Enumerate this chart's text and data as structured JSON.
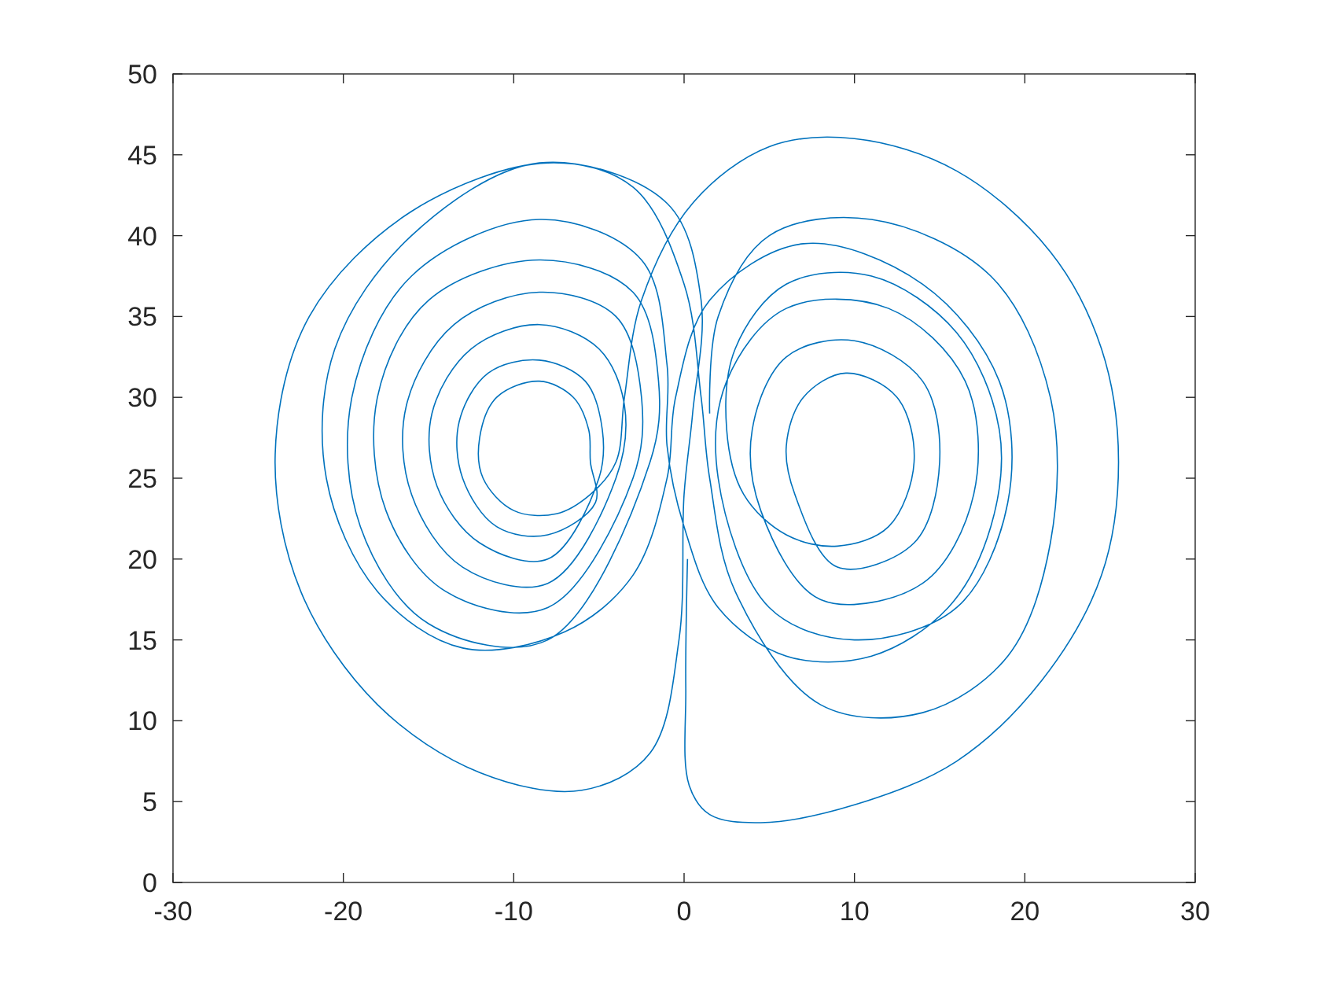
{
  "chart_data": {
    "type": "line",
    "xlim": [
      -30,
      30
    ],
    "xticks": [
      -30,
      -20,
      -10,
      0,
      10,
      20,
      30
    ],
    "ylim": [
      0,
      50
    ],
    "yticks": [
      0,
      5,
      10,
      15,
      20,
      25,
      30,
      35,
      40,
      45,
      50
    ],
    "grid": false,
    "series": [
      {
        "color": "#0072bd",
        "x": [
          0.2,
          0.1,
          0.3,
          1.5,
          4.5,
          10,
          16,
          21,
          24.5,
          25.5,
          24.5,
          21.5,
          16,
          10,
          5,
          0.5,
          -2.5,
          -3.5,
          -4,
          -5.5,
          -7.5,
          -10,
          -11.8,
          -12,
          -11,
          -8.5,
          -6.5,
          -5.6,
          -5.5,
          -5.2,
          -8,
          -11,
          -13,
          -13.2,
          -11.5,
          -8.5,
          -5.8,
          -4.8,
          -5,
          -8,
          -12,
          -14.5,
          -14.8,
          -12.5,
          -8.5,
          -5,
          -3.5,
          -4,
          -8,
          -13,
          -16,
          -16.3,
          -13.5,
          -8.5,
          -4,
          -2.5,
          -3,
          -8,
          -14,
          -17.5,
          -18,
          -15,
          -8.5,
          -3,
          -1.5,
          -2,
          -8,
          -15,
          -19,
          -19.5,
          -16,
          -8.5,
          -2.5,
          -1,
          -1,
          0,
          2,
          6,
          11,
          15.5,
          18,
          18.5,
          16,
          11,
          6,
          3,
          2.5,
          3.5,
          6,
          9,
          12,
          13.5,
          12.5,
          9.5,
          7,
          6,
          6.5,
          9,
          13.5,
          15,
          14,
          10,
          6,
          4,
          4.5,
          8,
          14,
          17,
          16.5,
          12,
          6,
          2.5,
          2,
          5,
          10,
          16,
          19,
          18.5,
          14,
          7,
          1.5,
          -0.5,
          -1,
          -3,
          -7,
          -13,
          -18,
          -21,
          -20.5,
          -16,
          -8.5,
          -1,
          1,
          0.5,
          0,
          -0.3,
          -2,
          -6,
          -12,
          -18,
          -22.5,
          -24,
          -22,
          -16,
          -8,
          -3,
          0,
          1,
          1.5,
          3,
          8,
          14,
          19,
          21.5,
          21.5,
          18,
          11,
          5,
          2,
          1.5
        ],
        "values": [
          20,
          12,
          6,
          4.2,
          3.7,
          4.8,
          7.5,
          12.5,
          19,
          26,
          33,
          39,
          44,
          46,
          45.5,
          42,
          36,
          30,
          26,
          24,
          22.8,
          23,
          25,
          27.5,
          30,
          31,
          30,
          28,
          26,
          23.5,
          21.5,
          22,
          25,
          28.5,
          31.5,
          32.3,
          31,
          28,
          25,
          20,
          21,
          24.5,
          29,
          33,
          34.5,
          33,
          29.5,
          25,
          18.5,
          19.5,
          24,
          29.5,
          34.5,
          36.5,
          35,
          30,
          25,
          17,
          18,
          23,
          30,
          36,
          38.5,
          36.5,
          31,
          26,
          15,
          16,
          22,
          30,
          37.5,
          41,
          38.5,
          32,
          27,
          22,
          17,
          14,
          14,
          17,
          22,
          28,
          34,
          37.5,
          37,
          33,
          28,
          24,
          21.5,
          20.8,
          22,
          26,
          30,
          31.5,
          30,
          27,
          24,
          19.5,
          21,
          26,
          31,
          33.5,
          32.5,
          28,
          23,
          17.5,
          18.5,
          24,
          31,
          35.5,
          35.5,
          31,
          25,
          17,
          15,
          17,
          23.5,
          31,
          37,
          39.5,
          36,
          30,
          25,
          19,
          15.5,
          14.5,
          18,
          25,
          33,
          40,
          44.5,
          42,
          36,
          29,
          24,
          15,
          8,
          5.7,
          6.8,
          11,
          18,
          26.5,
          35,
          41.5,
          44.5,
          43,
          37,
          30,
          25,
          18,
          11,
          10.5,
          14,
          21,
          30,
          37.5,
          41,
          40,
          35,
          29
        ]
      }
    ]
  }
}
